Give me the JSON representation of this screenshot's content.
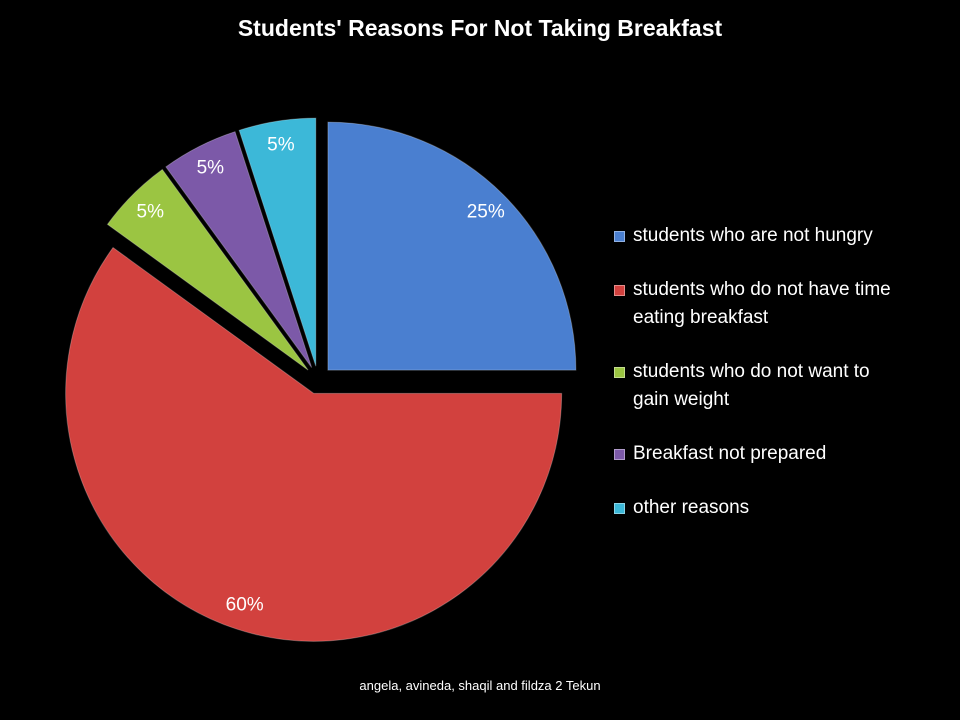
{
  "chart_data": {
    "type": "pie",
    "title": "Students' Reasons For Not Taking Breakfast",
    "categories": [
      "students who are not hungry",
      "students who do not have time eating breakfast",
      "students who do not want to gain weight",
      "Breakfast not prepared",
      "other reasons"
    ],
    "values": [
      25,
      60,
      5,
      5,
      5
    ],
    "value_labels": [
      "25%",
      "60%",
      "5%",
      "5%",
      "5%"
    ],
    "colors": [
      "#4a7fd0",
      "#d2413e",
      "#9bc542",
      "#7c59a8",
      "#3cb8d8"
    ],
    "legend": "right"
  },
  "footer": "angela, avineda, shaqil and fildza 2 Tekun"
}
